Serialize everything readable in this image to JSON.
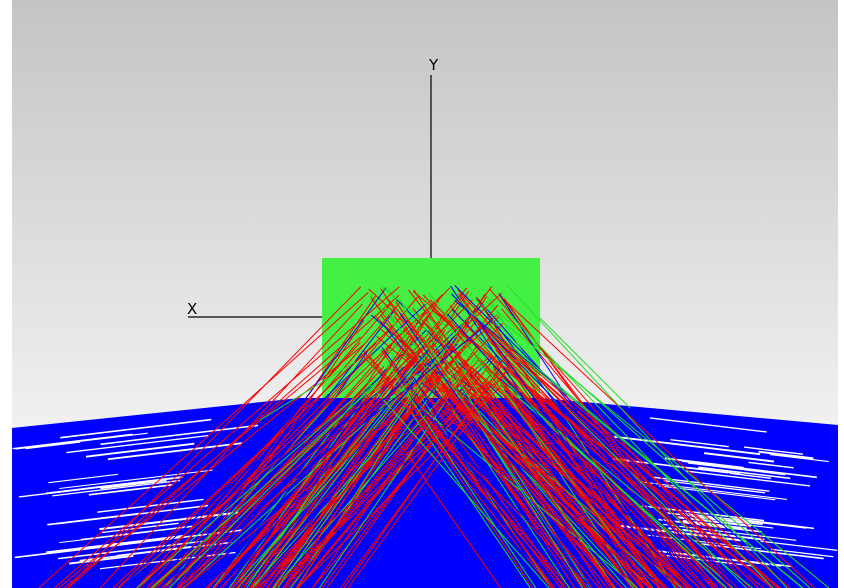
{
  "axes": {
    "x_label": "X",
    "y_label": "Y"
  }
}
